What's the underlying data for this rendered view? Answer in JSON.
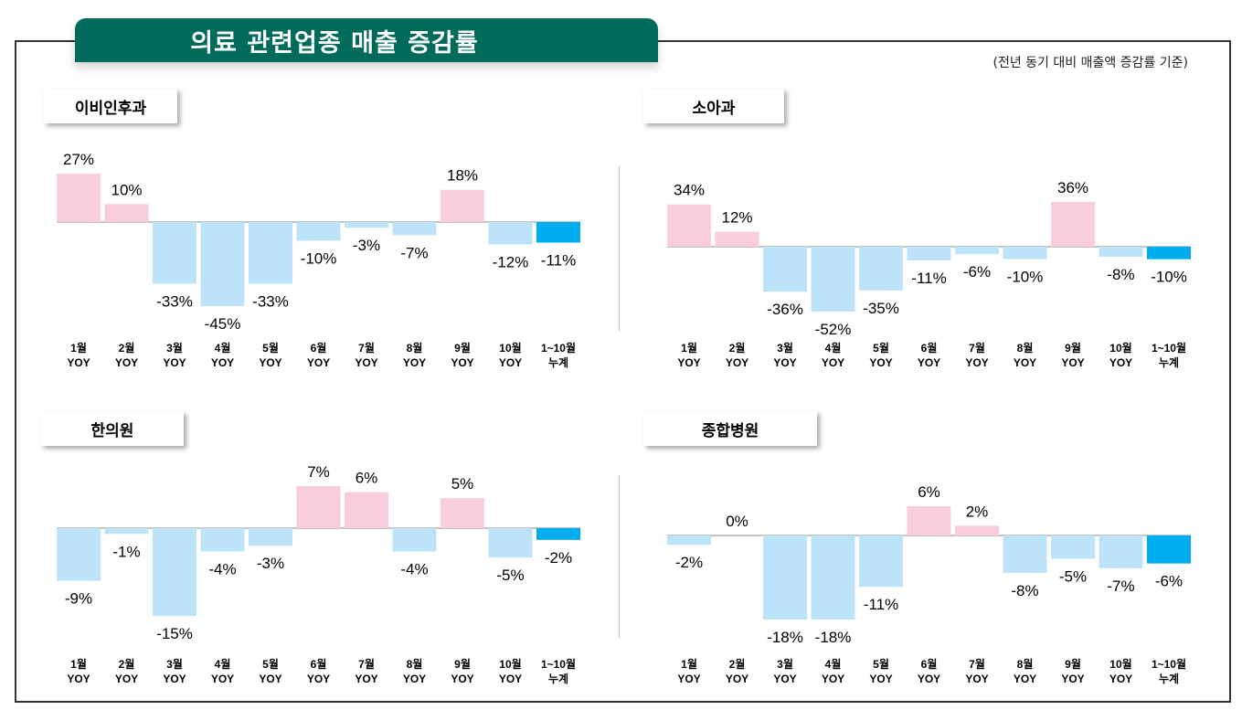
{
  "title": "의료 관련업종 매출 증감률",
  "subtitle": "(전년 동기 대비 매출액 증감률 기준)",
  "colors": {
    "positive": "#f9cdd9",
    "negative": "#bde3f9",
    "cumulative": "#00aeef",
    "banner": "#006b5b"
  },
  "panels": [
    {
      "label": "이비인후과"
    },
    {
      "label": "소아과"
    },
    {
      "label": "한의원"
    },
    {
      "label": "종합병원"
    }
  ],
  "chart_data": [
    {
      "type": "bar",
      "title": "이비인후과",
      "categories": [
        "1월\nYOY",
        "2월\nYOY",
        "3월\nYOY",
        "4월\nYOY",
        "5월\nYOY",
        "6월\nYOY",
        "7월\nYOY",
        "8월\nYOY",
        "9월\nYOY",
        "10월\nYOY",
        "1~10월\n누계"
      ],
      "values": [
        27,
        10,
        -33,
        -45,
        -33,
        -10,
        -3,
        -7,
        18,
        -12,
        -11
      ],
      "value_labels": [
        "27%",
        "10%",
        "-33%",
        "-45%",
        "-33%",
        "-10%",
        "-3%",
        "-7%",
        "18%",
        "-12%",
        "-11%"
      ],
      "ylim": [
        -45,
        27
      ]
    },
    {
      "type": "bar",
      "title": "소아과",
      "categories": [
        "1월\nYOY",
        "2월\nYOY",
        "3월\nYOY",
        "4월\nYOY",
        "5월\nYOY",
        "6월\nYOY",
        "7월\nYOY",
        "8월\nYOY",
        "9월\nYOY",
        "10월\nYOY",
        "1~10월\n누계"
      ],
      "values": [
        34,
        12,
        -36,
        -52,
        -35,
        -11,
        -6,
        -10,
        36,
        -8,
        -10
      ],
      "value_labels": [
        "34%",
        "12%",
        "-36%",
        "-52%",
        "-35%",
        "-11%",
        "-6%",
        "-10%",
        "36%",
        "-8%",
        "-10%"
      ],
      "ylim": [
        -52,
        36
      ]
    },
    {
      "type": "bar",
      "title": "한의원",
      "categories": [
        "1월\nYOY",
        "2월\nYOY",
        "3월\nYOY",
        "4월\nYOY",
        "5월\nYOY",
        "6월\nYOY",
        "7월\nYOY",
        "8월\nYOY",
        "9월\nYOY",
        "10월\nYOY",
        "1~10월\n누계"
      ],
      "values": [
        -9,
        -1,
        -15,
        -4,
        -3,
        7,
        6,
        -4,
        5,
        -5,
        -2
      ],
      "value_labels": [
        "-9%",
        "-1%",
        "-15%",
        "-4%",
        "-3%",
        "7%",
        "6%",
        "-4%",
        "5%",
        "-5%",
        "-2%"
      ],
      "ylim": [
        -15,
        7
      ]
    },
    {
      "type": "bar",
      "title": "종합병원",
      "categories": [
        "1월\nYOY",
        "2월\nYOY",
        "3월\nYOY",
        "4월\nYOY",
        "5월\nYOY",
        "6월\nYOY",
        "7월\nYOY",
        "8월\nYOY",
        "9월\nYOY",
        "10월\nYOY",
        "1~10월\n누계"
      ],
      "values": [
        -2,
        0,
        -18,
        -18,
        -11,
        6,
        2,
        -8,
        -5,
        -7,
        -6
      ],
      "value_labels": [
        "-2%",
        "0%",
        "-18%",
        "-18%",
        "-11%",
        "6%",
        "2%",
        "-8%",
        "-5%",
        "-7%",
        "-6%"
      ],
      "ylim": [
        -18,
        6
      ]
    }
  ]
}
